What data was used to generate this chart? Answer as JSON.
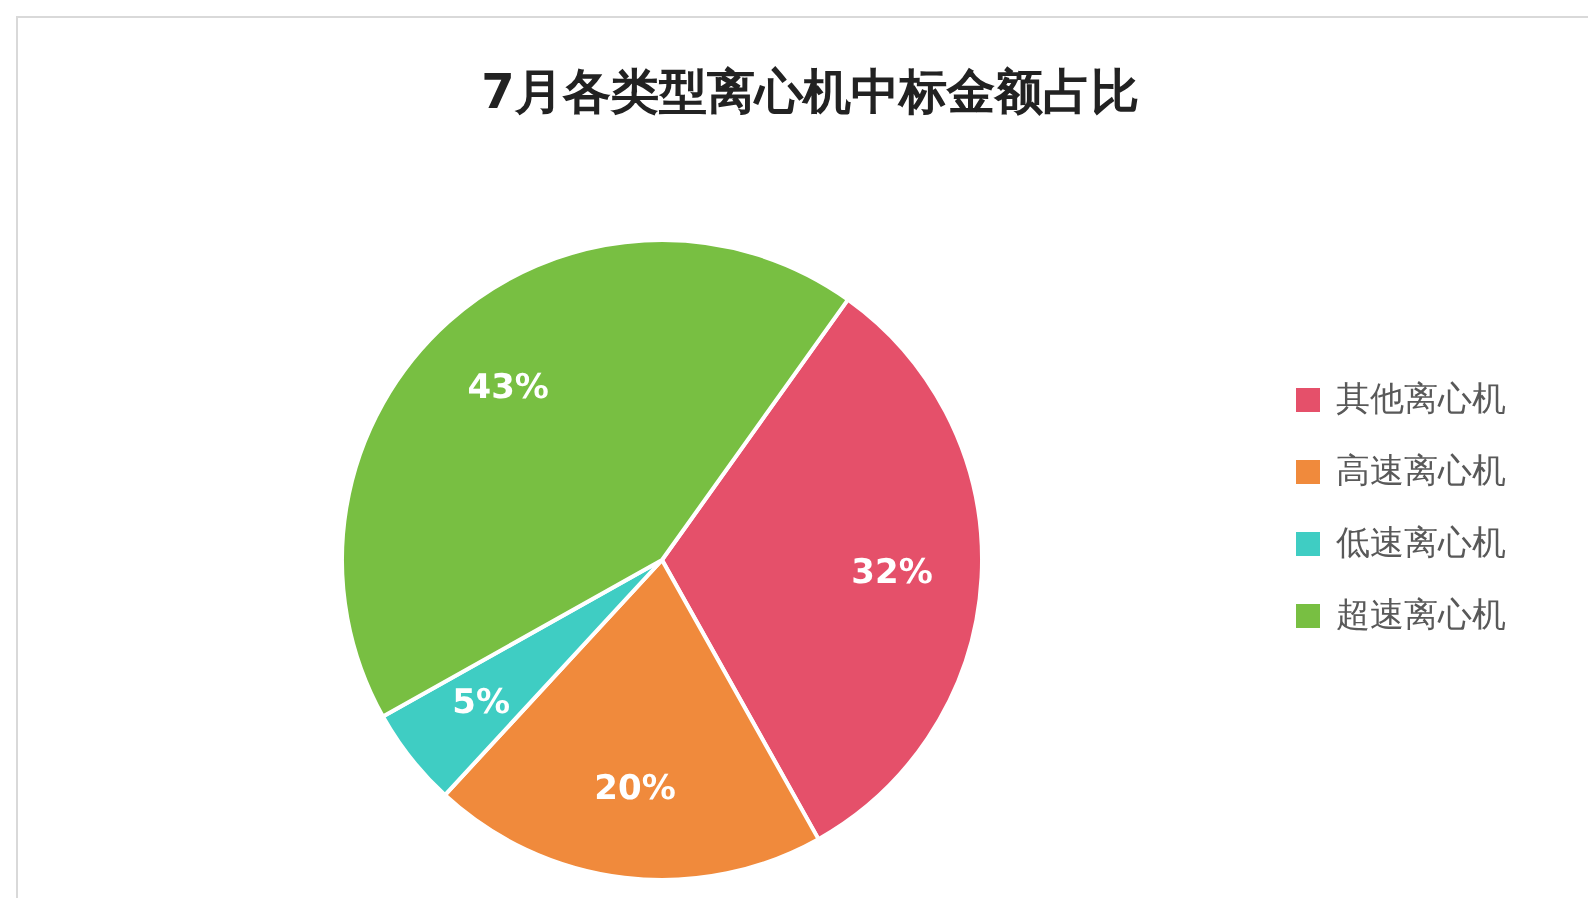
{
  "chart_data": {
    "type": "pie",
    "title": "7月各类型离心机中标金额占比",
    "categories": [
      "其他离心机",
      "高速离心机",
      "低速离心机",
      "超速离心机"
    ],
    "values": [
      32,
      20,
      5,
      43
    ],
    "colors": [
      "#e5506a",
      "#f08a3c",
      "#3fcdc3",
      "#78bf42"
    ],
    "value_labels": [
      "32%",
      "20%",
      "5%",
      "43%"
    ],
    "legend": "right"
  }
}
